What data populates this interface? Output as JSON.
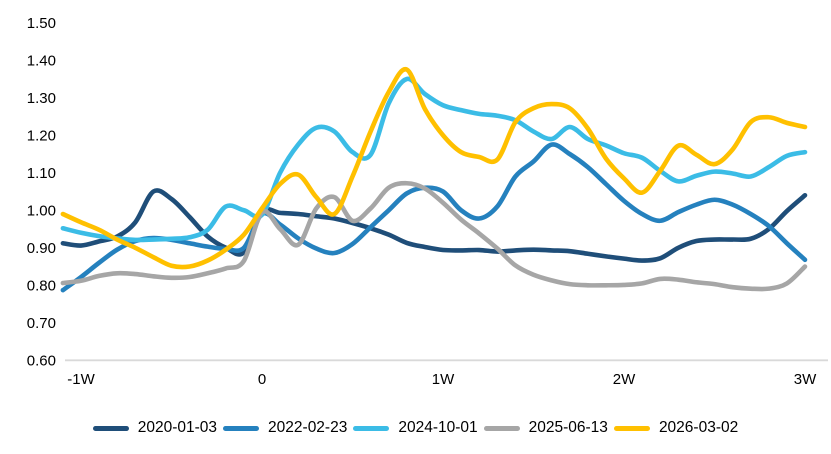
{
  "chart_data": {
    "type": "line",
    "title": "",
    "xlabel": "",
    "ylabel": "",
    "grid": false,
    "legend_position": "bottom",
    "colors": {
      "axis_line": "#D9D9D9",
      "text": "#000000",
      "background": "#FFFFFF"
    },
    "y_axis": {
      "min": 0.6,
      "max": 1.5,
      "tick_step": 0.1,
      "ticks": [
        "0.60",
        "0.70",
        "0.80",
        "0.90",
        "1.00",
        "1.10",
        "1.20",
        "1.30",
        "1.40",
        "1.50"
      ]
    },
    "x_axis": {
      "ticks": [
        {
          "label": "-1W",
          "value": -1
        },
        {
          "label": "0",
          "value": 0
        },
        {
          "label": "1W",
          "value": 1
        },
        {
          "label": "2W",
          "value": 2
        },
        {
          "label": "3W",
          "value": 3
        }
      ]
    },
    "x": [
      -1.1,
      -1.0,
      -0.9,
      -0.8,
      -0.7,
      -0.6,
      -0.5,
      -0.4,
      -0.3,
      -0.2,
      -0.1,
      0.0,
      0.1,
      0.2,
      0.3,
      0.4,
      0.5,
      0.6,
      0.7,
      0.8,
      0.9,
      1.0,
      1.1,
      1.2,
      1.3,
      1.4,
      1.5,
      1.6,
      1.7,
      1.8,
      1.9,
      2.0,
      2.1,
      2.2,
      2.3,
      2.4,
      2.5,
      2.6,
      2.7,
      2.8,
      2.9,
      3.0
    ],
    "series": [
      {
        "name": "2020-01-03",
        "color": "#1F4E79",
        "values": [
          0.912,
          0.906,
          0.917,
          0.93,
          0.968,
          1.05,
          1.03,
          0.982,
          0.93,
          0.9,
          0.888,
          0.995,
          0.993,
          0.99,
          0.984,
          0.978,
          0.966,
          0.952,
          0.935,
          0.913,
          0.902,
          0.894,
          0.893,
          0.894,
          0.89,
          0.893,
          0.895,
          0.893,
          0.891,
          0.884,
          0.877,
          0.871,
          0.866,
          0.872,
          0.9,
          0.918,
          0.922,
          0.922,
          0.924,
          0.95,
          0.998,
          1.04
        ]
      },
      {
        "name": "2022-02-23",
        "color": "#2581BE",
        "values": [
          0.787,
          0.822,
          0.86,
          0.895,
          0.918,
          0.926,
          0.921,
          0.912,
          0.903,
          0.897,
          0.9,
          0.99,
          0.962,
          0.925,
          0.898,
          0.886,
          0.91,
          0.955,
          1.0,
          1.045,
          1.06,
          1.05,
          1.0,
          0.978,
          1.01,
          1.09,
          1.13,
          1.175,
          1.15,
          1.115,
          1.07,
          1.025,
          0.99,
          0.972,
          0.995,
          1.015,
          1.028,
          1.015,
          0.99,
          0.958,
          0.912,
          0.868
        ]
      },
      {
        "name": "2024-10-01",
        "color": "#3BBCE6",
        "values": [
          0.952,
          0.94,
          0.931,
          0.925,
          0.921,
          0.922,
          0.924,
          0.928,
          0.948,
          1.01,
          1.0,
          0.988,
          1.1,
          1.175,
          1.22,
          1.21,
          1.155,
          1.148,
          1.285,
          1.35,
          1.31,
          1.28,
          1.267,
          1.257,
          1.252,
          1.24,
          1.21,
          1.19,
          1.222,
          1.19,
          1.173,
          1.152,
          1.14,
          1.105,
          1.077,
          1.092,
          1.103,
          1.098,
          1.09,
          1.115,
          1.145,
          1.155
        ]
      },
      {
        "name": "2025-06-13",
        "color": "#A6A6A6",
        "values": [
          0.806,
          0.812,
          0.825,
          0.832,
          0.83,
          0.824,
          0.82,
          0.822,
          0.832,
          0.845,
          0.865,
          0.995,
          0.95,
          0.908,
          1.005,
          1.035,
          0.972,
          1.005,
          1.06,
          1.072,
          1.058,
          1.02,
          0.975,
          0.938,
          0.898,
          0.853,
          0.828,
          0.813,
          0.803,
          0.8,
          0.8,
          0.801,
          0.805,
          0.817,
          0.815,
          0.808,
          0.803,
          0.795,
          0.791,
          0.791,
          0.805,
          0.85
        ]
      },
      {
        "name": "2026-03-02",
        "color": "#FFC000",
        "values": [
          0.99,
          0.968,
          0.948,
          0.922,
          0.9,
          0.875,
          0.852,
          0.85,
          0.866,
          0.895,
          0.935,
          1.005,
          1.07,
          1.095,
          1.035,
          0.99,
          1.09,
          1.21,
          1.315,
          1.375,
          1.27,
          1.2,
          1.155,
          1.142,
          1.135,
          1.235,
          1.272,
          1.283,
          1.272,
          1.218,
          1.138,
          1.085,
          1.047,
          1.105,
          1.172,
          1.148,
          1.123,
          1.162,
          1.235,
          1.248,
          1.233,
          1.222
        ]
      }
    ]
  }
}
